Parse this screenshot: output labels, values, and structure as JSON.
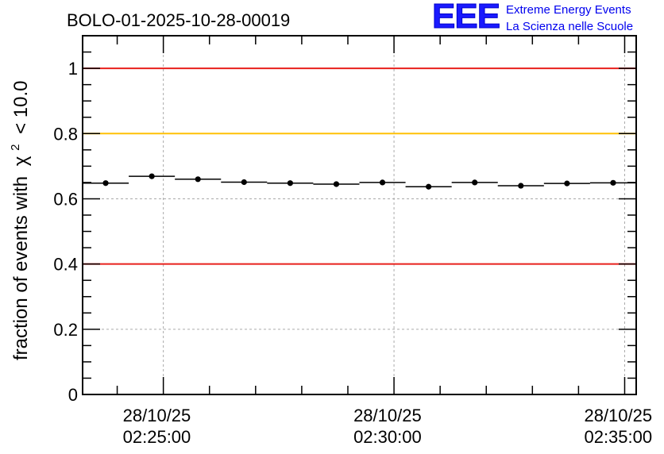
{
  "logo": {
    "mark": "EEE",
    "line1": "Extreme Energy Events",
    "line2": "La Scienza nelle Scuole",
    "color": "#0000ee"
  },
  "chart_data": {
    "type": "scatter",
    "title": "BOLO-01-2025-10-28-00019",
    "ylabel": "fraction of events with",
    "ylabel_symbol": "χ",
    "ylabel_superscript": "2",
    "ylabel_suffix": "< 10.0",
    "xlabel": "",
    "ylim": [
      0,
      1.1
    ],
    "xlim_seconds": [
      -105,
      615
    ],
    "x_unit": "seconds since 28/10/25 02:25:00",
    "grid": true,
    "y_ticks": [
      {
        "value": 0,
        "label": "0"
      },
      {
        "value": 0.2,
        "label": "0.2"
      },
      {
        "value": 0.4,
        "label": "0.4"
      },
      {
        "value": 0.6,
        "label": "0.6"
      },
      {
        "value": 0.8,
        "label": "0.8"
      },
      {
        "value": 1.0,
        "label": "1"
      }
    ],
    "x_ticks": [
      {
        "value": 0,
        "date": "28/10/25",
        "time": "02:25:00"
      },
      {
        "value": 300,
        "date": "28/10/25",
        "time": "02:30:00"
      },
      {
        "value": 600,
        "date": "28/10/25",
        "time": "02:35:00"
      }
    ],
    "reference_lines": [
      {
        "value": 1.0,
        "color": "#e8201c"
      },
      {
        "value": 0.8,
        "color": "#ffc107"
      },
      {
        "value": 0.4,
        "color": "#e8201c"
      }
    ],
    "bin_width_seconds": 60,
    "series": [
      {
        "name": "fraction",
        "color": "#000000",
        "x": [
          -75,
          -15,
          45,
          105,
          165,
          225,
          285,
          345,
          405,
          465,
          525,
          585
        ],
        "values": [
          0.648,
          0.669,
          0.66,
          0.651,
          0.648,
          0.645,
          0.65,
          0.637,
          0.65,
          0.64,
          0.647,
          0.649
        ]
      }
    ]
  }
}
